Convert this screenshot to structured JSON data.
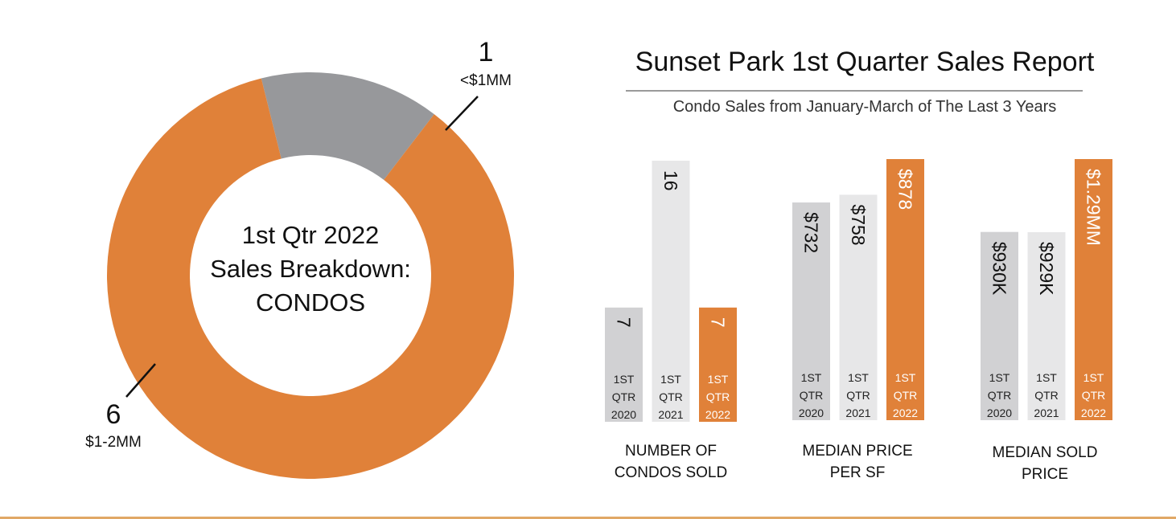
{
  "colors": {
    "orange": "#e08139",
    "gray": "#97989b",
    "bar_gray": "#d1d1d3",
    "bar_light": "#e7e7e8",
    "text": "#111111"
  },
  "center_label": {
    "line1": "1st Qtr 2022",
    "line2": "Sales Breakdown:",
    "line3": "CONDOS"
  },
  "report": {
    "title": "Sunset Park 1st Quarter Sales Report",
    "subtitle": "Condo Sales from January-March of The Last 3 Years"
  },
  "chart_data": [
    {
      "type": "pie",
      "title": "1st Qtr 2022 Sales Breakdown: CONDOS",
      "donut": true,
      "slices": [
        {
          "label": "<$1MM",
          "value": 1,
          "value_label": "1"
        },
        {
          "label": "$1-2MM",
          "value": 6,
          "value_label": "6"
        }
      ]
    },
    {
      "type": "bar",
      "title": "NUMBER OF CONDOS SOLD",
      "group_label_lines": [
        "NUMBER OF",
        "CONDOS SOLD"
      ],
      "categories": [
        [
          "1ST",
          "QTR",
          "2020"
        ],
        [
          "1ST",
          "QTR",
          "2021"
        ],
        [
          "1ST",
          "QTR",
          "2022"
        ]
      ],
      "values": [
        7,
        16,
        7
      ],
      "value_labels": [
        "7",
        "16",
        "7"
      ],
      "ylim": [
        0,
        16
      ]
    },
    {
      "type": "bar",
      "title": "MEDIAN PRICE PER SF",
      "group_label_lines": [
        "MEDIAN PRICE",
        "PER SF"
      ],
      "categories": [
        [
          "1ST",
          "QTR",
          "2020"
        ],
        [
          "1ST",
          "QTR",
          "2021"
        ],
        [
          "1ST",
          "QTR",
          "2022"
        ]
      ],
      "values": [
        732,
        758,
        878
      ],
      "value_labels": [
        "$732",
        "$758",
        "$878"
      ],
      "ylim": [
        0,
        878
      ]
    },
    {
      "type": "bar",
      "title": "MEDIAN SOLD PRICE",
      "group_label_lines": [
        "MEDIAN SOLD",
        "PRICE"
      ],
      "categories": [
        [
          "1ST",
          "QTR",
          "2020"
        ],
        [
          "1ST",
          "QTR",
          "2021"
        ],
        [
          "1ST",
          "QTR",
          "2022"
        ]
      ],
      "values": [
        930000,
        929000,
        1290000
      ],
      "value_labels": [
        "$930K",
        "$929K",
        "$1.29MM"
      ],
      "ylim": [
        0,
        1290000
      ]
    }
  ]
}
